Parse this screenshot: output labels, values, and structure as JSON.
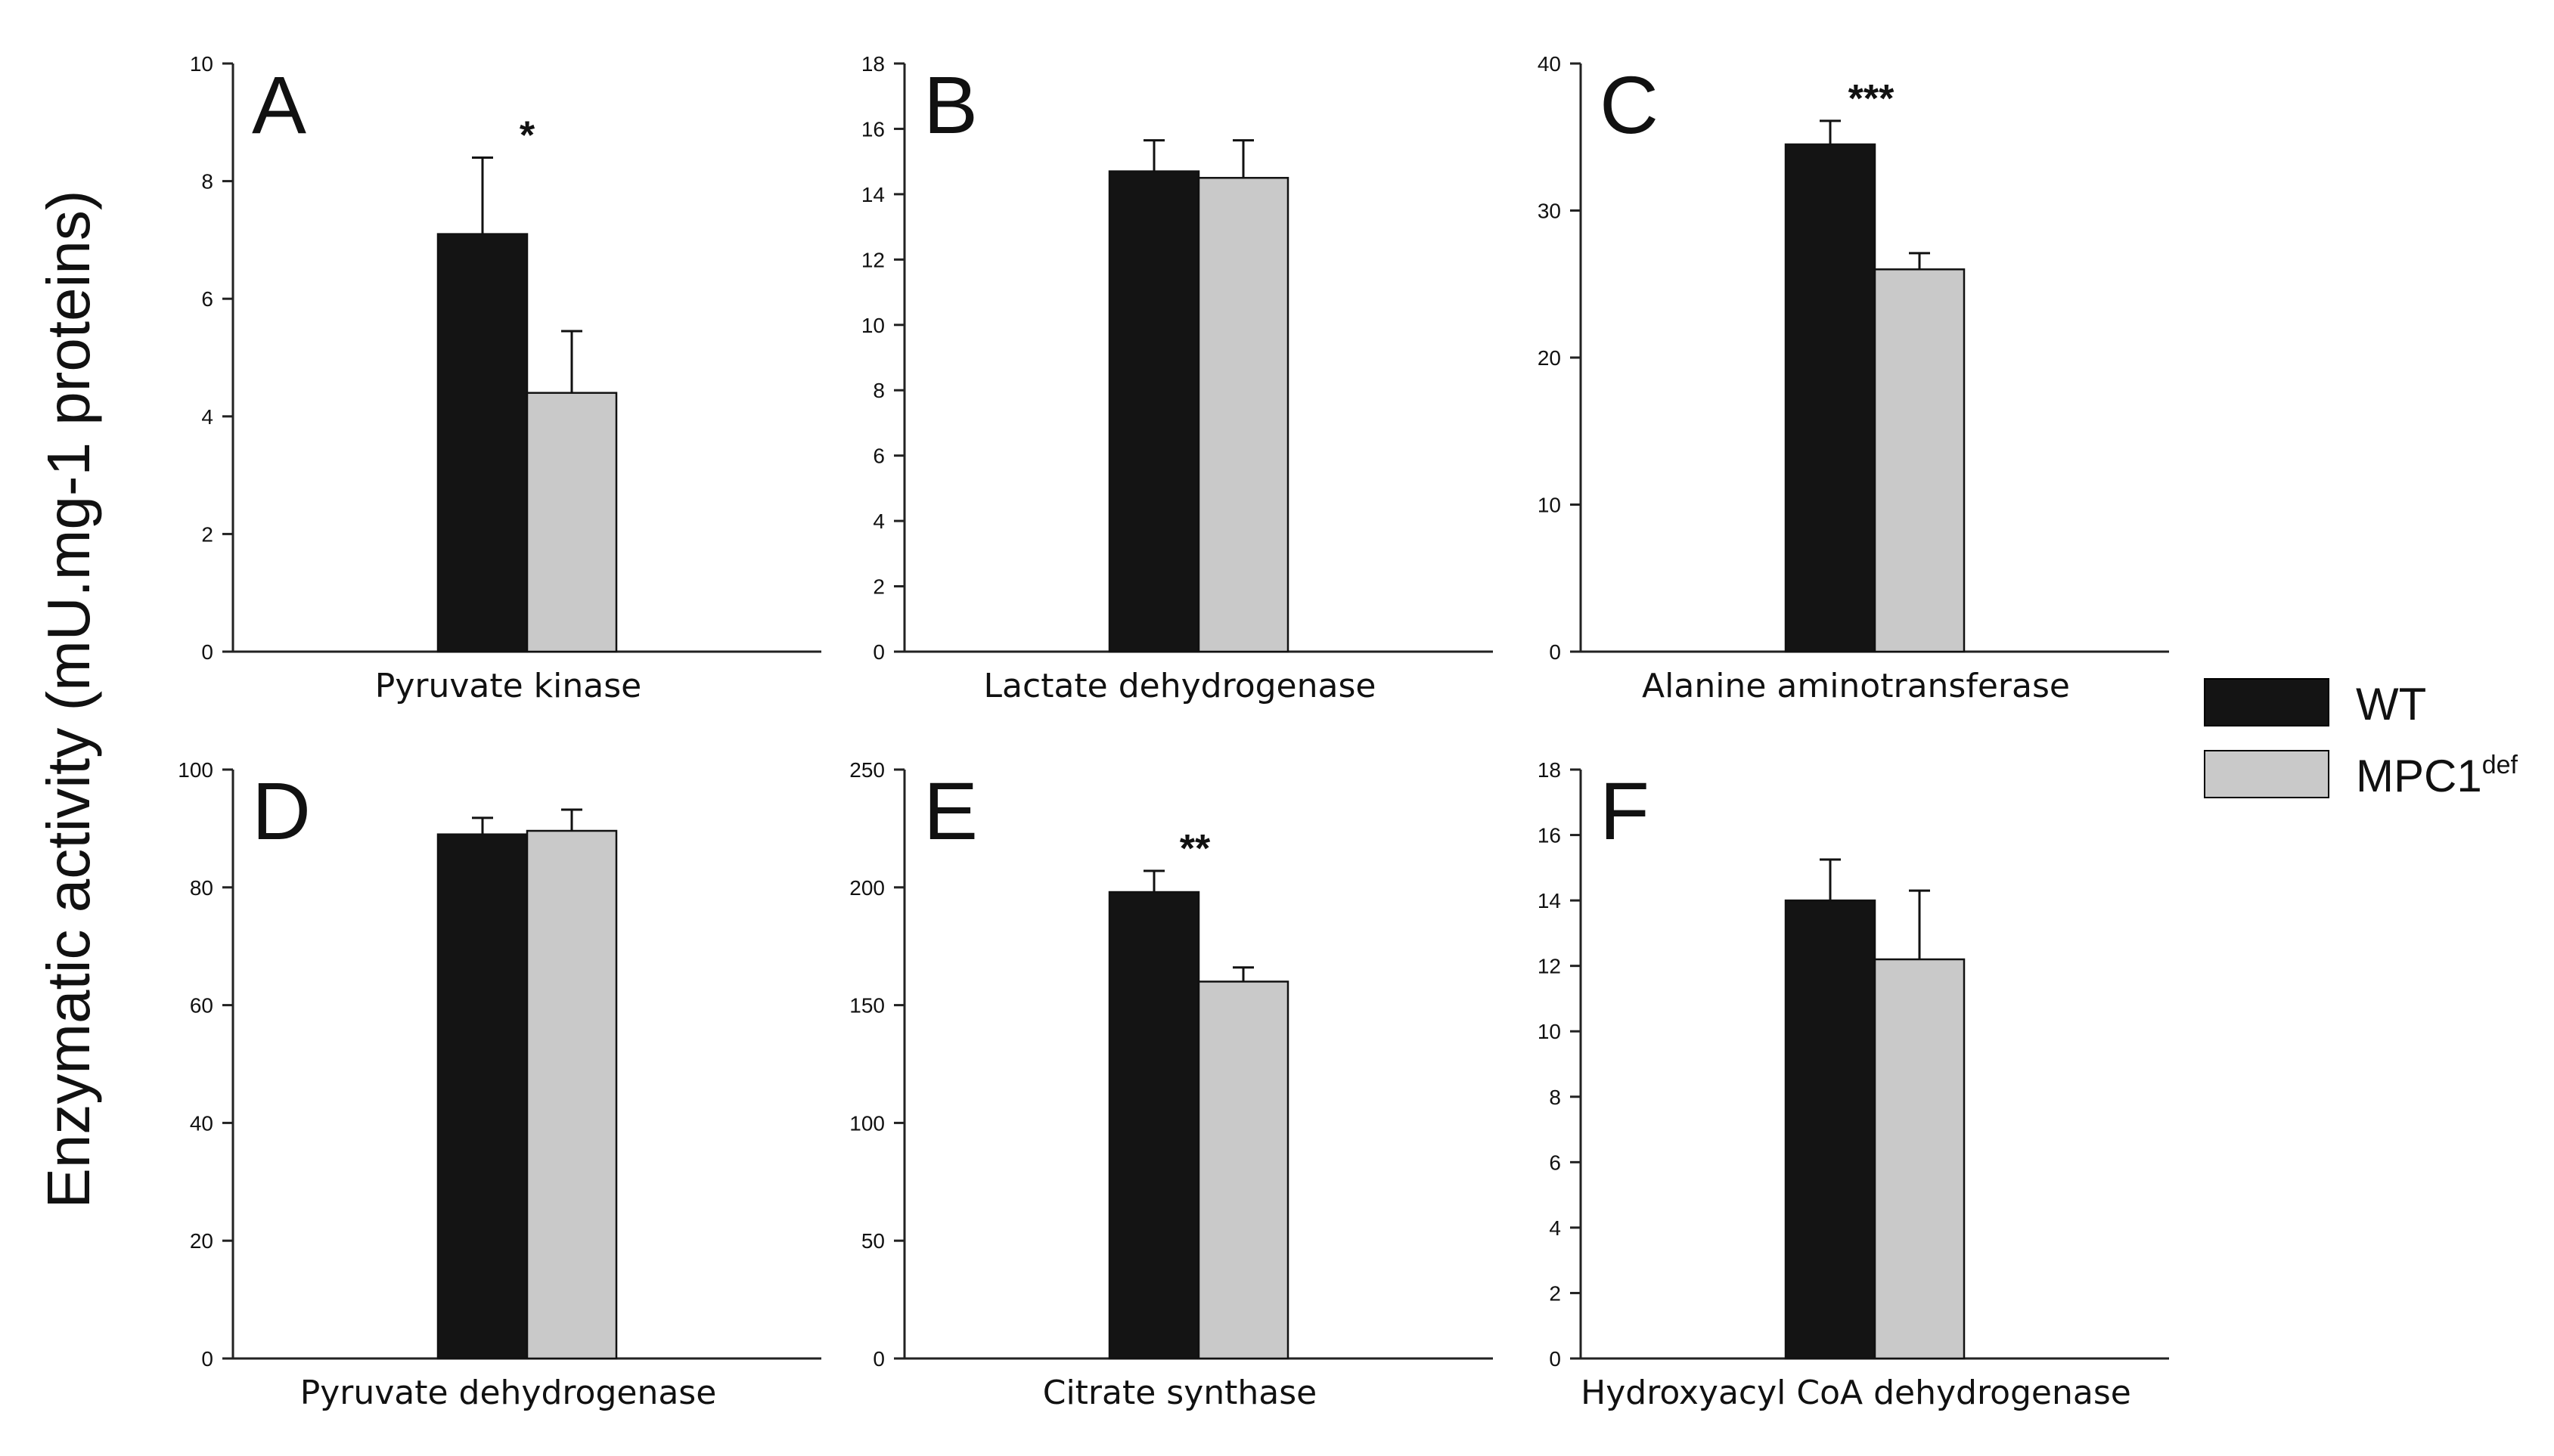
{
  "figure": {
    "ylabel": "Enzymatic activity (mU.mg-1 proteins)"
  },
  "legend": {
    "items": [
      {
        "label": "WT",
        "sup": "",
        "color": "#141414"
      },
      {
        "label": "MPC1",
        "sup": "def",
        "color": "#c9c9c9"
      }
    ]
  },
  "chart_data": [
    {
      "type": "bar",
      "panel": "A",
      "title": "Pyruvate kinase",
      "xlabel": "Pyruvate kinase",
      "ylim": [
        0,
        10
      ],
      "yticks": [
        0,
        2,
        4,
        6,
        8,
        10
      ],
      "significance": "*",
      "series": [
        {
          "name": "WT",
          "value": 7.1,
          "error": 1.3,
          "color": "#141414"
        },
        {
          "name": "MPC1def",
          "value": 4.4,
          "error": 1.05,
          "color": "#c9c9c9"
        }
      ]
    },
    {
      "type": "bar",
      "panel": "B",
      "title": "Lactate dehydrogenase",
      "xlabel": "Lactate dehydrogenase",
      "ylim": [
        0,
        18
      ],
      "yticks": [
        0,
        2,
        4,
        6,
        8,
        10,
        12,
        14,
        16,
        18
      ],
      "significance": "",
      "series": [
        {
          "name": "WT",
          "value": 14.7,
          "error": 0.95,
          "color": "#141414"
        },
        {
          "name": "MPC1def",
          "value": 14.5,
          "error": 1.15,
          "color": "#c9c9c9"
        }
      ]
    },
    {
      "type": "bar",
      "panel": "C",
      "title": "Alanine aminotransferase",
      "xlabel": "Alanine aminotransferase",
      "ylim": [
        0,
        40
      ],
      "yticks": [
        0,
        10,
        20,
        30,
        40
      ],
      "significance": "***",
      "series": [
        {
          "name": "WT",
          "value": 34.5,
          "error": 1.6,
          "color": "#141414"
        },
        {
          "name": "MPC1def",
          "value": 26.0,
          "error": 1.1,
          "color": "#c9c9c9"
        }
      ]
    },
    {
      "type": "bar",
      "panel": "D",
      "title": "Pyruvate dehydrogenase",
      "xlabel": "Pyruvate dehydrogenase",
      "ylim": [
        0,
        100
      ],
      "yticks": [
        0,
        20,
        40,
        60,
        80,
        100
      ],
      "significance": "",
      "series": [
        {
          "name": "WT",
          "value": 89.0,
          "error": 2.8,
          "color": "#141414"
        },
        {
          "name": "MPC1def",
          "value": 89.6,
          "error": 3.6,
          "color": "#c9c9c9"
        }
      ]
    },
    {
      "type": "bar",
      "panel": "E",
      "title": "Citrate synthase",
      "xlabel": "Citrate synthase",
      "ylim": [
        0,
        250
      ],
      "yticks": [
        0,
        50,
        100,
        150,
        200,
        250
      ],
      "significance": "**",
      "series": [
        {
          "name": "WT",
          "value": 198,
          "error": 9,
          "color": "#141414"
        },
        {
          "name": "MPC1def",
          "value": 160,
          "error": 6,
          "color": "#c9c9c9"
        }
      ]
    },
    {
      "type": "bar",
      "panel": "F",
      "title": "Hydroxyacyl CoA dehydrogenase",
      "xlabel": "Hydroxyacyl CoA dehydrogenase",
      "ylim": [
        0,
        18
      ],
      "yticks": [
        0,
        2,
        4,
        6,
        8,
        10,
        12,
        14,
        16,
        18
      ],
      "significance": "",
      "series": [
        {
          "name": "WT",
          "value": 14.0,
          "error": 1.25,
          "color": "#141414"
        },
        {
          "name": "MPC1def",
          "value": 12.2,
          "error": 2.1,
          "color": "#c9c9c9"
        }
      ]
    }
  ]
}
